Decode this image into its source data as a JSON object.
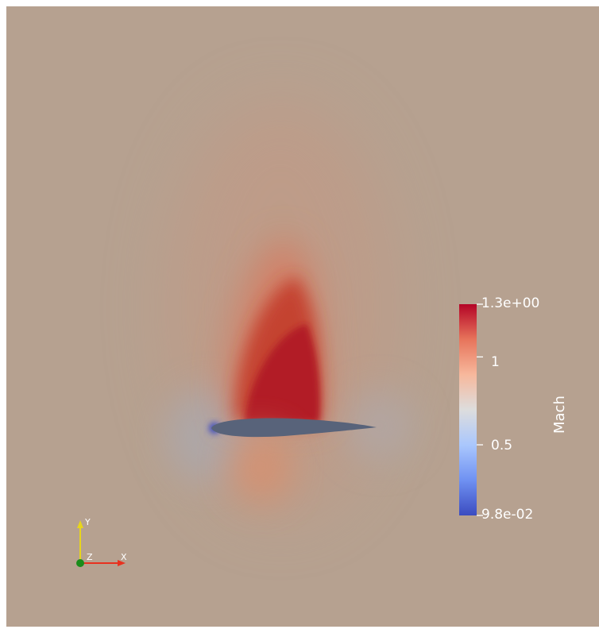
{
  "render_view": {
    "background_color": "#b6a190",
    "field_colors": {
      "high_mach": "#b31d2b",
      "mid_mach": "#dd8a6c",
      "free_stream": "#b6a190",
      "low_mach": "#3b4cc0"
    },
    "airfoil_color": "#58637a"
  },
  "color_legend": {
    "title": "Mach",
    "max_label": "1.3e+00",
    "tick_1_label": "1",
    "tick_2_label": "0.5",
    "min_label": "9.8e-02",
    "max_value": 1.3,
    "min_value": 0.098,
    "tick_values": [
      1,
      0.5
    ],
    "colormap": "cool-to-warm",
    "colormap_stops": [
      "#3b4cc0",
      "#6f91f2",
      "#aac7fd",
      "#dddddd",
      "#f7b89c",
      "#e7745b",
      "#b40426"
    ]
  },
  "orientation_axes": {
    "x_label": "X",
    "y_label": "Y",
    "z_label": "Z",
    "x_color": "#e8311f",
    "y_color": "#e8d51c",
    "z_color": "#1a8c1a"
  }
}
